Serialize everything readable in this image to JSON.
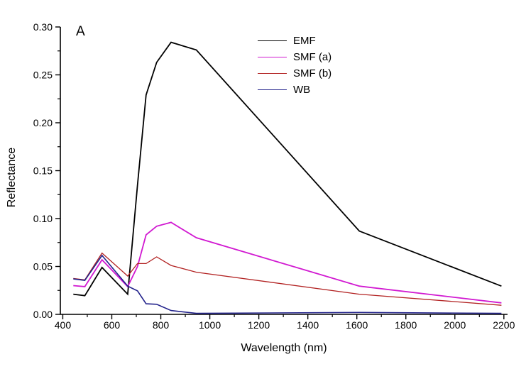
{
  "figure": {
    "background": "#ffffff"
  },
  "chart_data": {
    "type": "line",
    "title": "",
    "annotation": "A",
    "xlabel": "Wavelength (nm)",
    "ylabel": "Reflectance",
    "xlim": [
      390,
      2215
    ],
    "ylim": [
      0,
      0.3
    ],
    "grid": false,
    "legend_position": "upper-center-right",
    "x_ticks_major": [
      400,
      600,
      800,
      1000,
      1200,
      1400,
      1600,
      1800,
      2000,
      2200
    ],
    "x_minor_step": 100,
    "y_ticks_major": [
      0.0,
      0.05,
      0.1,
      0.15,
      0.2,
      0.25,
      0.3
    ],
    "y_minor_step": 0.025,
    "x": [
      443,
      490,
      560,
      665,
      705,
      740,
      783,
      842,
      945,
      1610,
      2190
    ],
    "series": [
      {
        "name": "EMF",
        "color": "#000000",
        "line_width": 1.8,
        "values": [
          0.021,
          0.0195,
          0.049,
          0.021,
          0.135,
          0.229,
          0.263,
          0.284,
          0.276,
          0.087,
          0.0295
        ]
      },
      {
        "name": "SMF (a)",
        "color": "#D119D1",
        "line_width": 1.8,
        "values": [
          0.03,
          0.029,
          0.057,
          0.029,
          0.05,
          0.083,
          0.092,
          0.096,
          0.08,
          0.0295,
          0.012
        ]
      },
      {
        "name": "SMF (b)",
        "color": "#B22222",
        "line_width": 1.3,
        "values": [
          0.0375,
          0.036,
          0.064,
          0.04,
          0.053,
          0.053,
          0.06,
          0.051,
          0.044,
          0.021,
          0.0095
        ]
      },
      {
        "name": "WB",
        "color": "#24248C",
        "line_width": 1.6,
        "values": [
          0.037,
          0.0355,
          0.0615,
          0.0295,
          0.0245,
          0.011,
          0.0105,
          0.004,
          0.001,
          0.002,
          0.001
        ]
      }
    ]
  }
}
